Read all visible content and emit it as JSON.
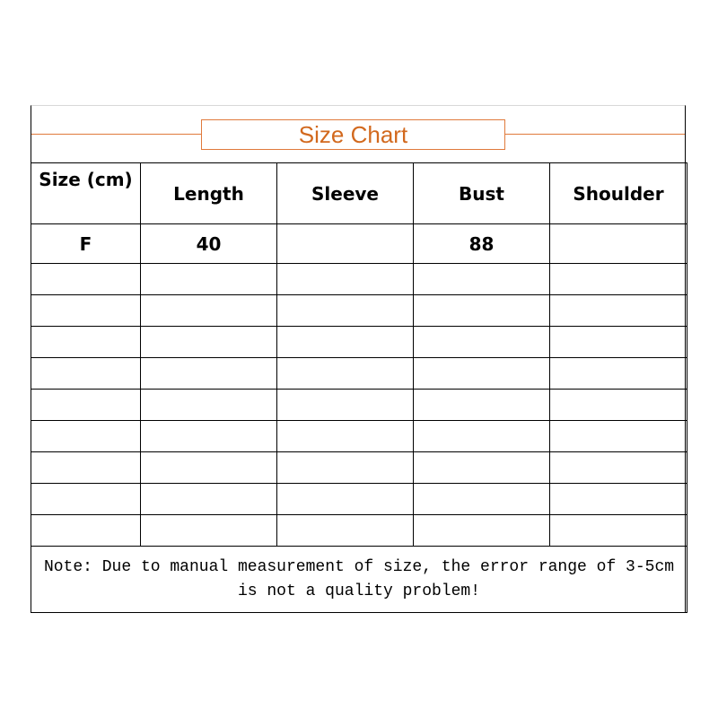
{
  "title": "Size Chart",
  "accent_color": "#e07a3c",
  "headers": [
    "Size  (cm)",
    "Length",
    "Sleeve",
    "Bust",
    "Shoulder"
  ],
  "rows": [
    [
      "F",
      "40",
      "",
      "88",
      ""
    ],
    [
      "",
      "",
      "",
      "",
      ""
    ],
    [
      "",
      "",
      "",
      "",
      ""
    ],
    [
      "",
      "",
      "",
      "",
      ""
    ],
    [
      "",
      "",
      "",
      "",
      ""
    ],
    [
      "",
      "",
      "",
      "",
      ""
    ],
    [
      "",
      "",
      "",
      "",
      ""
    ],
    [
      "",
      "",
      "",
      "",
      ""
    ],
    [
      "",
      "",
      "",
      "",
      ""
    ],
    [
      "",
      "",
      "",
      "",
      ""
    ]
  ],
  "note": "Note: Due to manual measurement of size, the error range of 3-5cm is not a quality problem!"
}
